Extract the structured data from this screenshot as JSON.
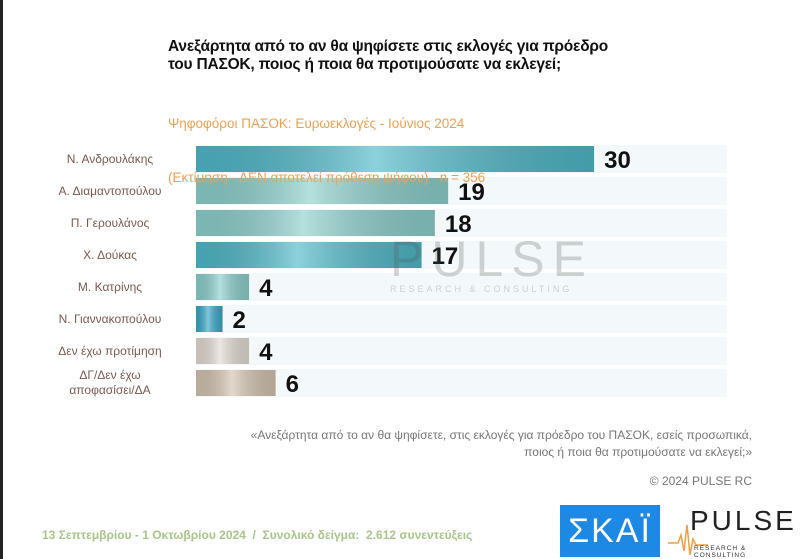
{
  "title_line1": "Ανεξάρτητα από το αν θα ψηφίσετε στις εκλογές για πρόεδρο",
  "title_line2": "του ΠΑΣΟΚ, ποιος ή ποια θα προτιμούσατε να εκλεγεί;",
  "subtitle_line1": "Ψηφοφόροι ΠΑΣΟΚ: Ευρωεκλογές - Ιούνιος 2024",
  "subtitle_line2": "(Εκτίμηση - ΔΕΝ αποτελεί πρόθεση ψήφου)   n = 356",
  "chart_data": {
    "type": "bar",
    "orientation": "horizontal",
    "categories": [
      "Ν. Ανδρουλάκης",
      "Α. Διαμαντοπούλου",
      "Π. Γερουλάνος",
      "Χ. Δούκας",
      "Μ. Κατρίνης",
      "Ν. Γιαννακοπούλου",
      "Δεν έχω προτίμηση",
      "ΔΓ/Δεν έχω αποφασίσει/ΔΑ"
    ],
    "values": [
      30,
      19,
      18,
      17,
      4,
      2,
      4,
      6
    ],
    "colors": [
      "#4fb8c8",
      "#8ccfcb",
      "#8ccfcb",
      "#4fb8c8",
      "#8ccfcb",
      "#3aa8c8",
      "#e3dcd4",
      "#d2c4b0"
    ],
    "grid": false
  },
  "watermark": {
    "main": "PULSE",
    "sub": "RESEARCH & CONSULTING"
  },
  "quote_line1": "«Ανεξάρτητα από το αν θα ψηφίσετε, στις εκλογές για πρόεδρο του ΠΑΣΟΚ, εσείς προσωπικά,",
  "quote_line2": "ποιος ή ποια θα προτιμούσατε να εκλεγεί;»",
  "copyright": "© 2024 PULSE RC",
  "footer": "13 Σεπτεμβρίου - 1 Οκτωβρίου 2024  /  Συνολικό δείγμα:  2.612 συνεντεύξεις",
  "logos": {
    "skai": "ΣΚΑΪ",
    "pulse": "PULSE",
    "pulse_sub": "RESEARCH & CONSULTING"
  }
}
